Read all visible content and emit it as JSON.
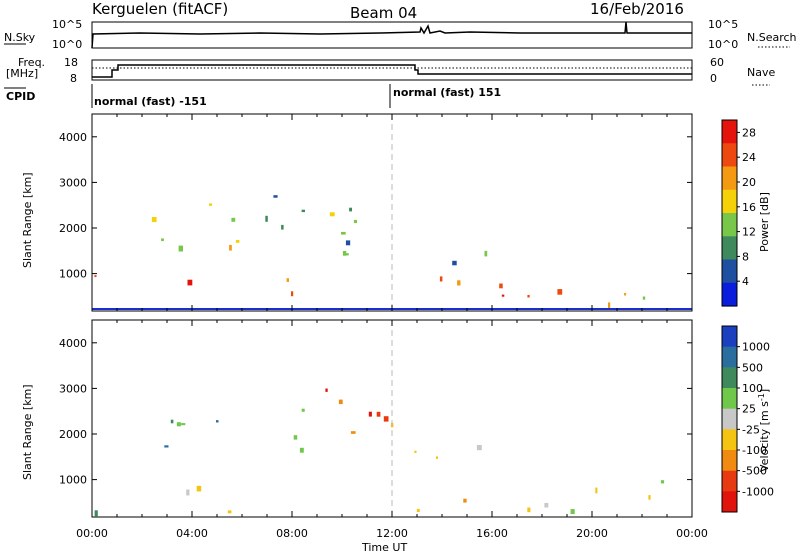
{
  "header": {
    "station": "Kerguelen (fitACF)",
    "beam": "Beam 04",
    "date": "16/Feb/2016"
  },
  "noise_panel": {
    "left_label": "N.Sky",
    "right_label": "N.Search",
    "left_ticks": [
      "10^5",
      "10^0"
    ],
    "right_ticks": [
      "10^5",
      "10^0"
    ]
  },
  "freq_panel": {
    "left_label_1": "Freq.",
    "left_label_2": "[MHz]",
    "right_label": "Nave",
    "left_ticks": [
      "18",
      "8"
    ],
    "right_ticks": [
      "60",
      "0"
    ]
  },
  "cpid": {
    "label": "CPID",
    "segments": [
      {
        "start_hour": 0,
        "text": "normal (fast) -151"
      },
      {
        "start_hour": 12,
        "text": "normal (fast) 151"
      }
    ]
  },
  "time_axis": {
    "xlabel": "Time UT",
    "tick_labels": [
      "00:00",
      "04:00",
      "08:00",
      "12:00",
      "16:00",
      "20:00",
      "00:00"
    ]
  },
  "chart_data": [
    {
      "type": "heatmap",
      "title": "",
      "xlabel": "Time UT",
      "ylabel": "Slant Range [km]",
      "xlim": [
        0,
        24
      ],
      "ylim": [
        180,
        4500
      ],
      "y_ticks": [
        1000,
        2000,
        3000,
        4000
      ],
      "colorbar": {
        "label": "Power [dB]",
        "ticks": [
          "4",
          "8",
          "12",
          "16",
          "20",
          "24",
          "28"
        ],
        "range": [
          0,
          30
        ],
        "colors": [
          "#0a1cdc",
          "#1f4fa0",
          "#3f8a5c",
          "#78c74a",
          "#f5d10a",
          "#f39a12",
          "#ee4a10",
          "#e4140c"
        ]
      },
      "scatter_regions": [
        {
          "t0": 0.0,
          "t1": 1.0,
          "r0": 300,
          "r1": 1100,
          "value": 20
        },
        {
          "t0": 2.2,
          "t1": 6.0,
          "r0": 1400,
          "r1": 2500,
          "value": 16
        },
        {
          "t0": 2.0,
          "t1": 4.0,
          "r0": 700,
          "r1": 1200,
          "value": 22
        },
        {
          "t0": 4.5,
          "t1": 8.0,
          "r0": 1800,
          "r1": 2600,
          "value": 12
        },
        {
          "t0": 6.5,
          "t1": 8.5,
          "r0": 2000,
          "r1": 3200,
          "value": 8
        },
        {
          "t0": 7.5,
          "t1": 9.5,
          "r0": 400,
          "r1": 1300,
          "value": 24
        },
        {
          "t0": 8.5,
          "t1": 11.0,
          "r0": 1200,
          "r1": 3000,
          "value": 14
        },
        {
          "t0": 10.0,
          "t1": 12.0,
          "r0": 1100,
          "r1": 2000,
          "value": 10
        },
        {
          "t0": 12.8,
          "t1": 14.0,
          "r0": 400,
          "r1": 1200,
          "value": 26
        },
        {
          "t0": 13.5,
          "t1": 17.5,
          "r0": 300,
          "r1": 1000,
          "value": 26
        },
        {
          "t0": 13.0,
          "t1": 16.0,
          "r0": 1100,
          "r1": 1700,
          "value": 8
        },
        {
          "t0": 15.5,
          "t1": 19.0,
          "r0": 400,
          "r1": 900,
          "value": 22
        },
        {
          "t0": 19.0,
          "t1": 24.0,
          "r0": 250,
          "r1": 700,
          "value": 18
        },
        {
          "t0": 21.5,
          "t1": 22.5,
          "r0": 700,
          "r1": 1100,
          "value": 14
        }
      ]
    },
    {
      "type": "heatmap",
      "title": "",
      "xlabel": "Time UT",
      "ylabel": "Slant Range [km]",
      "xlim": [
        0,
        24
      ],
      "ylim": [
        180,
        4500
      ],
      "y_ticks": [
        1000,
        2000,
        3000,
        4000
      ],
      "colorbar": {
        "label": "Velocity [m s^-1]",
        "ticks": [
          "1000",
          "500",
          "100",
          "25",
          "-25",
          "-100",
          "-500",
          "-1000"
        ],
        "colors": [
          "#1a3fbf",
          "#2a6ea0",
          "#3f8a5c",
          "#6fc84a",
          "#c8c8c8",
          "#f5c312",
          "#f08a10",
          "#e83a10",
          "#e0140c"
        ]
      },
      "scatter_regions": [
        {
          "t0": 0.0,
          "t1": 1.0,
          "r0": 300,
          "r1": 1000,
          "value": 3
        },
        {
          "t0": 2.2,
          "t1": 6.0,
          "r0": 1400,
          "r1": 2500,
          "value": 2
        },
        {
          "t0": 3.5,
          "t1": 6.5,
          "r0": 300,
          "r1": 1300,
          "value": 4
        },
        {
          "t0": 6.5,
          "t1": 8.5,
          "r0": 1600,
          "r1": 2800,
          "value": 4
        },
        {
          "t0": 8.5,
          "t1": 11.5,
          "r0": 2000,
          "r1": 3400,
          "value": 7
        },
        {
          "t0": 9.5,
          "t1": 12.0,
          "r0": 1800,
          "r1": 2600,
          "value": 6
        },
        {
          "t0": 12.0,
          "t1": 15.5,
          "r0": 1500,
          "r1": 2300,
          "value": 4
        },
        {
          "t0": 12.8,
          "t1": 13.6,
          "r0": 300,
          "r1": 900,
          "value": 6
        },
        {
          "t0": 14.0,
          "t1": 17.5,
          "r0": 300,
          "r1": 900,
          "value": 5
        },
        {
          "t0": 17.5,
          "t1": 24.0,
          "r0": 300,
          "r1": 900,
          "value": 4
        },
        {
          "t0": 21.5,
          "t1": 23.0,
          "r0": 700,
          "r1": 1000,
          "value": 3
        }
      ]
    }
  ]
}
